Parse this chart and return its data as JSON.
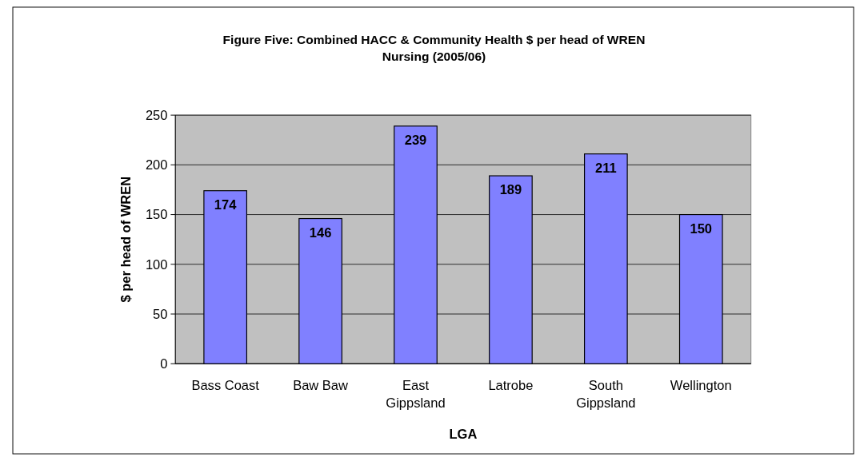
{
  "chart_data": {
    "type": "bar",
    "title": "Figure Five: Combined HACC & Community Health $ per head of WREN Nursing (2005/06)",
    "xlabel": "LGA",
    "ylabel": "$ per head of WREN",
    "categories": [
      "Bass Coast",
      "Baw Baw",
      "East Gippsland",
      "Latrobe",
      "South Gippsland",
      "Wellington"
    ],
    "values": [
      174,
      146,
      239,
      189,
      211,
      150
    ],
    "color": "#8080ff",
    "data_labels": true,
    "ylim": [
      0,
      250
    ],
    "yticks": [
      0,
      50,
      100,
      150,
      200,
      250
    ],
    "grid": "y"
  }
}
